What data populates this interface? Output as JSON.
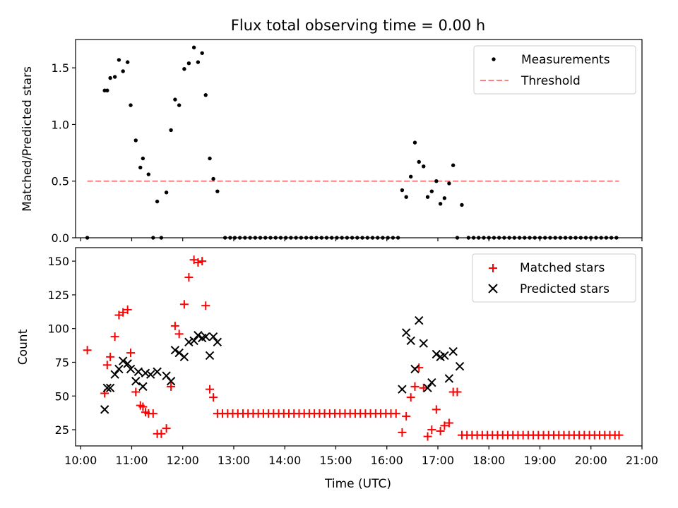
{
  "title": "Flux total observing time = 0.00 h",
  "chart_data": [
    {
      "type": "scatter",
      "panel": "top",
      "title": "Flux total observing time = 0.00 h",
      "xlabel": "",
      "ylabel": "Matched/Predicted stars",
      "xlim": [
        9.9,
        21.0
      ],
      "ylim": [
        0,
        1.75
      ],
      "yticks": [
        0.0,
        0.5,
        1.0,
        1.5
      ],
      "ytick_labels": [
        "0.0",
        "0.5",
        "1.0",
        "1.5"
      ],
      "legend_position": "top-right",
      "threshold": {
        "name": "Threshold",
        "value": 0.5,
        "x_start": 10.13,
        "x_end": 20.55,
        "color": "#ff7f7f"
      },
      "series": [
        {
          "name": "Measurements",
          "marker": "dot",
          "color": "#000000",
          "points": [
            [
              10.13,
              0.0
            ],
            [
              10.47,
              1.3
            ],
            [
              10.52,
              1.3
            ],
            [
              10.58,
              1.41
            ],
            [
              10.67,
              1.42
            ],
            [
              10.75,
              1.57
            ],
            [
              10.83,
              1.47
            ],
            [
              10.92,
              1.55
            ],
            [
              10.98,
              1.17
            ],
            [
              11.08,
              0.86
            ],
            [
              11.17,
              0.62
            ],
            [
              11.22,
              0.7
            ],
            [
              11.33,
              0.56
            ],
            [
              11.42,
              0.0
            ],
            [
              11.5,
              0.32
            ],
            [
              11.58,
              0.0
            ],
            [
              11.68,
              0.4
            ],
            [
              11.77,
              0.95
            ],
            [
              11.85,
              1.22
            ],
            [
              11.93,
              1.17
            ],
            [
              12.03,
              1.49
            ],
            [
              12.12,
              1.54
            ],
            [
              12.22,
              1.68
            ],
            [
              12.3,
              1.55
            ],
            [
              12.38,
              1.63
            ],
            [
              12.45,
              1.26
            ],
            [
              12.53,
              0.7
            ],
            [
              12.6,
              0.52
            ],
            [
              12.68,
              0.41
            ],
            [
              12.83,
              0
            ],
            [
              12.93,
              0
            ],
            [
              13.02,
              0
            ],
            [
              13.12,
              0
            ],
            [
              13.22,
              0
            ],
            [
              13.32,
              0
            ],
            [
              13.42,
              0
            ],
            [
              13.52,
              0
            ],
            [
              13.62,
              0
            ],
            [
              13.72,
              0
            ],
            [
              13.82,
              0
            ],
            [
              13.92,
              0
            ],
            [
              14.02,
              0
            ],
            [
              14.12,
              0
            ],
            [
              14.22,
              0
            ],
            [
              14.32,
              0
            ],
            [
              14.42,
              0
            ],
            [
              14.52,
              0
            ],
            [
              14.62,
              0
            ],
            [
              14.72,
              0
            ],
            [
              14.82,
              0
            ],
            [
              14.92,
              0
            ],
            [
              15.02,
              0
            ],
            [
              15.12,
              0
            ],
            [
              15.22,
              0
            ],
            [
              15.32,
              0
            ],
            [
              15.42,
              0
            ],
            [
              15.52,
              0
            ],
            [
              15.62,
              0
            ],
            [
              15.72,
              0
            ],
            [
              15.82,
              0
            ],
            [
              15.92,
              0
            ],
            [
              16.02,
              0
            ],
            [
              16.12,
              0
            ],
            [
              16.22,
              0
            ],
            [
              16.3,
              0.42
            ],
            [
              16.38,
              0.36
            ],
            [
              16.47,
              0.54
            ],
            [
              16.55,
              0.84
            ],
            [
              16.63,
              0.67
            ],
            [
              16.72,
              0.63
            ],
            [
              16.8,
              0.36
            ],
            [
              16.88,
              0.41
            ],
            [
              16.97,
              0.5
            ],
            [
              17.05,
              0.3
            ],
            [
              17.13,
              0.35
            ],
            [
              17.22,
              0.48
            ],
            [
              17.3,
              0.64
            ],
            [
              17.38,
              0.0
            ],
            [
              17.47,
              0.29
            ],
            [
              17.6,
              0
            ],
            [
              17.7,
              0
            ],
            [
              17.8,
              0
            ],
            [
              17.9,
              0
            ],
            [
              18.0,
              0
            ],
            [
              18.1,
              0
            ],
            [
              18.2,
              0
            ],
            [
              18.3,
              0
            ],
            [
              18.4,
              0
            ],
            [
              18.5,
              0
            ],
            [
              18.6,
              0
            ],
            [
              18.7,
              0
            ],
            [
              18.8,
              0
            ],
            [
              18.9,
              0
            ],
            [
              19.0,
              0
            ],
            [
              19.1,
              0
            ],
            [
              19.2,
              0
            ],
            [
              19.3,
              0
            ],
            [
              19.4,
              0
            ],
            [
              19.5,
              0
            ],
            [
              19.6,
              0
            ],
            [
              19.7,
              0
            ],
            [
              19.8,
              0
            ],
            [
              19.9,
              0
            ],
            [
              20.0,
              0
            ],
            [
              20.1,
              0
            ],
            [
              20.2,
              0
            ],
            [
              20.3,
              0
            ],
            [
              20.4,
              0
            ],
            [
              20.5,
              0
            ]
          ]
        }
      ]
    },
    {
      "type": "scatter",
      "panel": "bottom",
      "title": "",
      "xlabel": "Time (UTC)",
      "ylabel": "Count",
      "xlim": [
        9.9,
        21.0
      ],
      "ylim": [
        13,
        160
      ],
      "yticks": [
        25,
        50,
        75,
        100,
        125,
        150
      ],
      "ytick_labels": [
        "25",
        "50",
        "75",
        "100",
        "125",
        "150"
      ],
      "xticks": [
        10,
        11,
        12,
        13,
        14,
        15,
        16,
        17,
        18,
        19,
        20,
        21
      ],
      "xtick_labels": [
        "10:00",
        "11:00",
        "12:00",
        "13:00",
        "14:00",
        "15:00",
        "16:00",
        "17:00",
        "18:00",
        "19:00",
        "20:00",
        "21:00"
      ],
      "legend_position": "top-right",
      "series": [
        {
          "name": "Matched stars",
          "marker": "plus",
          "color": "#ff0000",
          "points": [
            [
              10.13,
              84
            ],
            [
              10.47,
              52
            ],
            [
              10.52,
              73
            ],
            [
              10.58,
              79
            ],
            [
              10.67,
              94
            ],
            [
              10.75,
              110
            ],
            [
              10.83,
              112
            ],
            [
              10.92,
              114
            ],
            [
              10.98,
              82
            ],
            [
              11.08,
              53
            ],
            [
              11.17,
              43
            ],
            [
              11.22,
              42
            ],
            [
              11.27,
              38
            ],
            [
              11.33,
              37
            ],
            [
              11.42,
              37
            ],
            [
              11.5,
              22
            ],
            [
              11.58,
              22
            ],
            [
              11.68,
              26
            ],
            [
              11.77,
              57
            ],
            [
              11.85,
              102
            ],
            [
              11.93,
              96
            ],
            [
              12.03,
              118
            ],
            [
              12.12,
              138
            ],
            [
              12.22,
              151
            ],
            [
              12.3,
              149
            ],
            [
              12.38,
              150
            ],
            [
              12.45,
              117
            ],
            [
              12.53,
              55
            ],
            [
              12.6,
              49
            ],
            [
              12.68,
              37
            ],
            [
              12.78,
              37
            ],
            [
              12.88,
              37
            ],
            [
              12.98,
              37
            ],
            [
              13.08,
              37
            ],
            [
              13.18,
              37
            ],
            [
              13.28,
              37
            ],
            [
              13.38,
              37
            ],
            [
              13.48,
              37
            ],
            [
              13.58,
              37
            ],
            [
              13.68,
              37
            ],
            [
              13.78,
              37
            ],
            [
              13.88,
              37
            ],
            [
              13.98,
              37
            ],
            [
              14.08,
              37
            ],
            [
              14.18,
              37
            ],
            [
              14.28,
              37
            ],
            [
              14.38,
              37
            ],
            [
              14.48,
              37
            ],
            [
              14.58,
              37
            ],
            [
              14.68,
              37
            ],
            [
              14.78,
              37
            ],
            [
              14.88,
              37
            ],
            [
              14.98,
              37
            ],
            [
              15.08,
              37
            ],
            [
              15.18,
              37
            ],
            [
              15.28,
              37
            ],
            [
              15.38,
              37
            ],
            [
              15.48,
              37
            ],
            [
              15.58,
              37
            ],
            [
              15.68,
              37
            ],
            [
              15.78,
              37
            ],
            [
              15.88,
              37
            ],
            [
              15.98,
              37
            ],
            [
              16.08,
              37
            ],
            [
              16.18,
              37
            ],
            [
              16.3,
              23
            ],
            [
              16.38,
              35
            ],
            [
              16.47,
              49
            ],
            [
              16.55,
              57
            ],
            [
              16.63,
              71
            ],
            [
              16.72,
              56
            ],
            [
              16.8,
              20
            ],
            [
              16.88,
              25
            ],
            [
              16.97,
              40
            ],
            [
              17.05,
              24
            ],
            [
              17.13,
              28
            ],
            [
              17.22,
              30
            ],
            [
              17.3,
              53
            ],
            [
              17.38,
              53
            ],
            [
              17.47,
              21
            ],
            [
              17.57,
              21
            ],
            [
              17.67,
              21
            ],
            [
              17.77,
              21
            ],
            [
              17.87,
              21
            ],
            [
              17.97,
              21
            ],
            [
              18.07,
              21
            ],
            [
              18.17,
              21
            ],
            [
              18.27,
              21
            ],
            [
              18.37,
              21
            ],
            [
              18.47,
              21
            ],
            [
              18.57,
              21
            ],
            [
              18.67,
              21
            ],
            [
              18.77,
              21
            ],
            [
              18.87,
              21
            ],
            [
              18.97,
              21
            ],
            [
              19.07,
              21
            ],
            [
              19.17,
              21
            ],
            [
              19.27,
              21
            ],
            [
              19.37,
              21
            ],
            [
              19.47,
              21
            ],
            [
              19.57,
              21
            ],
            [
              19.67,
              21
            ],
            [
              19.77,
              21
            ],
            [
              19.87,
              21
            ],
            [
              19.97,
              21
            ],
            [
              20.07,
              21
            ],
            [
              20.17,
              21
            ],
            [
              20.27,
              21
            ],
            [
              20.37,
              21
            ],
            [
              20.47,
              21
            ],
            [
              20.55,
              21
            ]
          ]
        },
        {
          "name": "Predicted stars",
          "marker": "x",
          "color": "#000000",
          "points": [
            [
              10.47,
              40
            ],
            [
              10.52,
              56
            ],
            [
              10.58,
              56
            ],
            [
              10.67,
              66
            ],
            [
              10.75,
              70
            ],
            [
              10.83,
              76
            ],
            [
              10.92,
              74
            ],
            [
              10.98,
              70
            ],
            [
              11.08,
              61
            ],
            [
              11.13,
              68
            ],
            [
              11.22,
              57
            ],
            [
              11.27,
              67
            ],
            [
              11.37,
              66
            ],
            [
              11.5,
              68
            ],
            [
              11.68,
              65
            ],
            [
              11.77,
              61
            ],
            [
              11.85,
              84
            ],
            [
              11.93,
              82
            ],
            [
              12.03,
              79
            ],
            [
              12.12,
              90
            ],
            [
              12.22,
              91
            ],
            [
              12.3,
              95
            ],
            [
              12.38,
              93
            ],
            [
              12.45,
              94
            ],
            [
              12.53,
              80
            ],
            [
              12.6,
              94
            ],
            [
              12.68,
              90
            ],
            [
              16.3,
              55
            ],
            [
              16.38,
              97
            ],
            [
              16.47,
              91
            ],
            [
              16.55,
              70
            ],
            [
              16.63,
              106
            ],
            [
              16.72,
              89
            ],
            [
              16.8,
              56
            ],
            [
              16.88,
              60
            ],
            [
              16.97,
              81
            ],
            [
              17.05,
              79
            ],
            [
              17.13,
              80
            ],
            [
              17.22,
              63
            ],
            [
              17.3,
              83
            ],
            [
              17.43,
              72
            ]
          ]
        }
      ]
    }
  ]
}
